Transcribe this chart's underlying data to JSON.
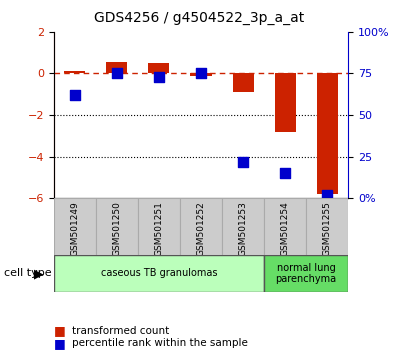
{
  "title": "GDS4256 / g4504522_3p_a_at",
  "samples": [
    "GSM501249",
    "GSM501250",
    "GSM501251",
    "GSM501252",
    "GSM501253",
    "GSM501254",
    "GSM501255"
  ],
  "transformed_count": [
    0.1,
    0.55,
    0.5,
    -0.1,
    -0.9,
    -2.8,
    -5.8
  ],
  "percentile_rank": [
    62,
    75,
    73,
    75,
    22,
    15,
    2
  ],
  "bar_color": "#cc2200",
  "dot_color": "#0000cc",
  "dashed_line_color": "#cc2200",
  "grid_color": "#000000",
  "left_ylim": [
    -6,
    2
  ],
  "left_yticks": [
    -6,
    -4,
    -2,
    0,
    2
  ],
  "right_ylim": [
    0,
    100
  ],
  "right_yticks": [
    0,
    25,
    50,
    75,
    100
  ],
  "right_yticklabels": [
    "0%",
    "25",
    "50",
    "75",
    "100%"
  ],
  "cell_type_groups": [
    {
      "label": "caseous TB granulomas",
      "samples": [
        0,
        1,
        2,
        3,
        4
      ],
      "color": "#bbffbb"
    },
    {
      "label": "normal lung\nparenchyma",
      "samples": [
        5,
        6
      ],
      "color": "#66dd66"
    }
  ],
  "xtick_bg_color": "#cccccc",
  "legend_items": [
    {
      "label": "transformed count",
      "color": "#cc2200"
    },
    {
      "label": "percentile rank within the sample",
      "color": "#0000cc"
    }
  ],
  "cell_type_label": "cell type",
  "background_color": "#ffffff",
  "plot_bg_color": "#ffffff",
  "bar_width": 0.5,
  "dot_size": 55
}
